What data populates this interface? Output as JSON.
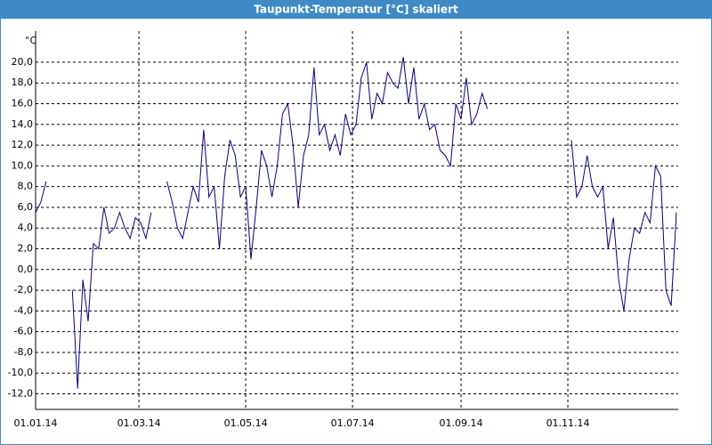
{
  "chart_data": {
    "type": "line",
    "title": "Taupunkt-Temperatur [°C] skaliert",
    "y_label": "°C",
    "color": "#00008b",
    "grid": true,
    "xlim": [
      0,
      367
    ],
    "ylim": [
      -13.5,
      23
    ],
    "xticks": [
      {
        "value": 0,
        "label": "01.01.14"
      },
      {
        "value": 59,
        "label": "01.03.14"
      },
      {
        "value": 120,
        "label": "01.05.14"
      },
      {
        "value": 181,
        "label": "01.07.14"
      },
      {
        "value": 243,
        "label": "01.09.14"
      },
      {
        "value": 304,
        "label": "01.11.14"
      }
    ],
    "yticks": [
      {
        "value": -12,
        "label": "-12,0"
      },
      {
        "value": -10,
        "label": "-10,0"
      },
      {
        "value": -8,
        "label": "-8,0"
      },
      {
        "value": -6,
        "label": "-6,0"
      },
      {
        "value": -4,
        "label": "-4,0"
      },
      {
        "value": -2,
        "label": "-2,0"
      },
      {
        "value": 0,
        "label": "0,0"
      },
      {
        "value": 2,
        "label": "2,0"
      },
      {
        "value": 4,
        "label": "4,0"
      },
      {
        "value": 6,
        "label": "6,0"
      },
      {
        "value": 8,
        "label": "8,0"
      },
      {
        "value": 10,
        "label": "10,0"
      },
      {
        "value": 12,
        "label": "12,0"
      },
      {
        "value": 14,
        "label": "14,0"
      },
      {
        "value": 16,
        "label": "16,0"
      },
      {
        "value": 18,
        "label": "18,0"
      },
      {
        "value": 20,
        "label": "20,0"
      }
    ],
    "x": [
      0,
      3,
      6,
      9,
      12,
      15,
      18,
      21,
      24,
      27,
      30,
      33,
      36,
      39,
      42,
      45,
      48,
      51,
      54,
      57,
      60,
      63,
      66,
      69,
      72,
      75,
      78,
      81,
      84,
      87,
      90,
      93,
      96,
      99,
      102,
      105,
      108,
      111,
      114,
      117,
      120,
      123,
      126,
      129,
      132,
      135,
      138,
      141,
      144,
      147,
      150,
      153,
      156,
      159,
      162,
      165,
      168,
      171,
      174,
      177,
      180,
      183,
      186,
      189,
      192,
      195,
      198,
      201,
      204,
      207,
      210,
      213,
      216,
      219,
      222,
      225,
      228,
      231,
      234,
      237,
      240,
      243,
      246,
      249,
      252,
      255,
      258,
      261,
      264,
      267,
      270,
      273,
      276,
      279,
      282,
      285,
      288,
      291,
      294,
      297,
      300,
      303,
      306,
      309,
      312,
      315,
      318,
      321,
      324,
      327,
      330,
      333,
      336,
      339,
      342,
      345,
      348,
      351,
      354,
      357,
      360,
      363,
      366
    ],
    "values": [
      5.5,
      6.5,
      8.5,
      null,
      null,
      null,
      null,
      -2,
      -11.5,
      -1,
      -5,
      2.5,
      2,
      6,
      3.5,
      4,
      5.5,
      4,
      3,
      5,
      4.5,
      3,
      5.5,
      null,
      null,
      8.5,
      6.5,
      4,
      3,
      5.5,
      8,
      6.5,
      13.5,
      7,
      8,
      2,
      9,
      12.5,
      11,
      7,
      8,
      1,
      6,
      11.5,
      10,
      7,
      10,
      15,
      16,
      12,
      6,
      11,
      13,
      19.5,
      13,
      14,
      11.5,
      13,
      11,
      15,
      13,
      14,
      18.5,
      20,
      14.5,
      17,
      16,
      19,
      18,
      17.5,
      20.5,
      16,
      19.5,
      14.5,
      16,
      13.5,
      14,
      11.5,
      11,
      10,
      16,
      14.5,
      18.5,
      14,
      15,
      17,
      15.5,
      null,
      null,
      null,
      null,
      null,
      null,
      null,
      null,
      null,
      null,
      null,
      null,
      null,
      null,
      null,
      12.5,
      7,
      8,
      11,
      8,
      7,
      8,
      2,
      5,
      -1,
      -4,
      1,
      4,
      3.5,
      5.5,
      4.5,
      10,
      9,
      -2,
      -3.5,
      5.5
    ]
  }
}
